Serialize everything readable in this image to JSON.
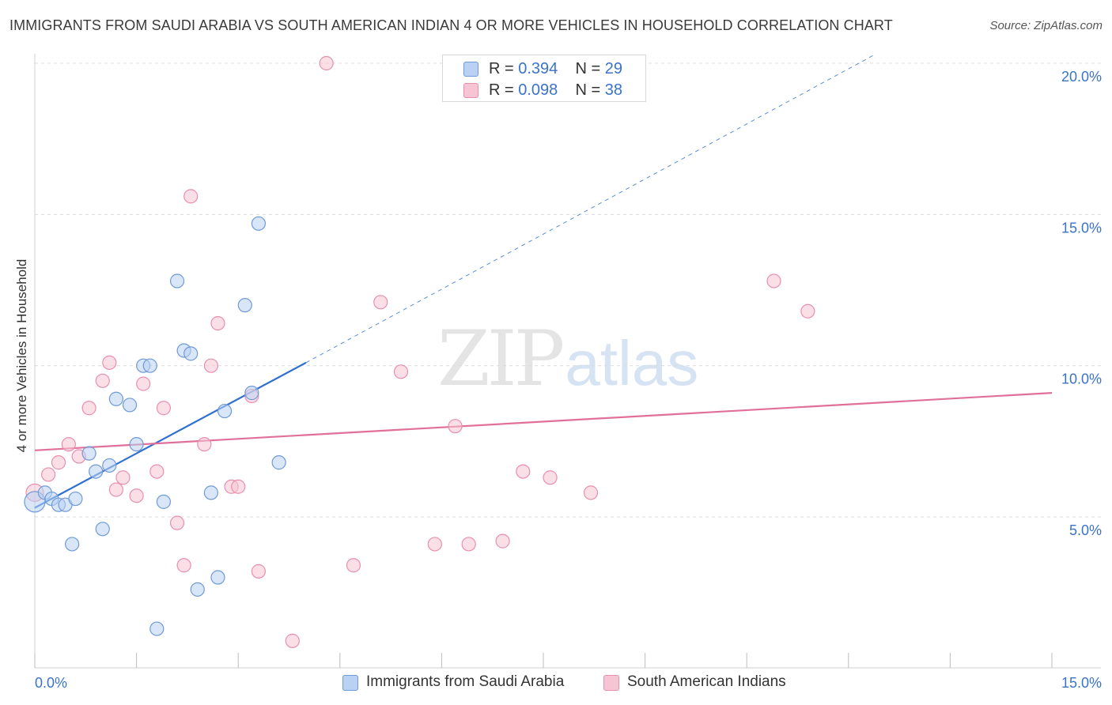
{
  "title": "IMMIGRANTS FROM SAUDI ARABIA VS SOUTH AMERICAN INDIAN 4 OR MORE VEHICLES IN HOUSEHOLD CORRELATION CHART",
  "source": "Source: ZipAtlas.com",
  "watermark": {
    "zip": "ZIP",
    "atlas": "atlas"
  },
  "colors": {
    "blue_fill": "#b9d1f2",
    "blue_stroke": "#6f9ad8",
    "blue_line": "#2f6fd0",
    "pink_fill": "#f7c4d4",
    "pink_stroke": "#e88faf",
    "pink_line": "#e0709a",
    "tick_label": "#3b73c9",
    "grid": "#dcdcdc"
  },
  "legend_top": [
    {
      "series": "blue",
      "r_label": "R = ",
      "r_value": "0.394",
      "n_label": "N = ",
      "n_value": "29"
    },
    {
      "series": "pink",
      "r_label": "R = ",
      "r_value": "0.098",
      "n_label": "N = ",
      "n_value": "38"
    }
  ],
  "chart_data": {
    "type": "scatter",
    "title": "IMMIGRANTS FROM SAUDI ARABIA VS SOUTH AMERICAN INDIAN 4 OR MORE VEHICLES IN HOUSEHOLD CORRELATION CHART",
    "xlabel": "",
    "ylabel": "4 or more Vehicles in Household",
    "xlim": [
      0,
      15
    ],
    "ylim": [
      0,
      20.5
    ],
    "x_tick_labels": [
      "0.0%",
      "15.0%"
    ],
    "y_tick_labels": [
      "5.0%",
      "10.0%",
      "15.0%",
      "20.0%"
    ],
    "y_ticks": [
      5,
      10,
      15,
      20
    ],
    "series": [
      {
        "name": "Immigrants from Saudi Arabia",
        "color": "blue",
        "R": 0.394,
        "N": 29,
        "trend": {
          "x0": 0.0,
          "y0": 5.3,
          "x1": 4.0,
          "y1": 10.1,
          "dashed_to_x": 12.4,
          "dashed_to_y": 20.3
        },
        "points": [
          [
            0.0,
            5.5
          ],
          [
            0.15,
            5.8
          ],
          [
            0.25,
            5.6
          ],
          [
            0.35,
            5.4
          ],
          [
            0.45,
            5.4
          ],
          [
            0.6,
            5.6
          ],
          [
            0.55,
            4.1
          ],
          [
            0.8,
            7.1
          ],
          [
            0.9,
            6.5
          ],
          [
            1.0,
            4.6
          ],
          [
            1.1,
            6.7
          ],
          [
            1.2,
            8.9
          ],
          [
            1.4,
            8.7
          ],
          [
            1.5,
            7.4
          ],
          [
            1.6,
            10.0
          ],
          [
            1.7,
            10.0
          ],
          [
            1.8,
            1.3
          ],
          [
            1.9,
            5.5
          ],
          [
            2.1,
            12.8
          ],
          [
            2.2,
            10.5
          ],
          [
            2.3,
            10.4
          ],
          [
            2.4,
            2.6
          ],
          [
            2.6,
            5.8
          ],
          [
            2.7,
            3.0
          ],
          [
            2.8,
            8.5
          ],
          [
            3.1,
            12.0
          ],
          [
            3.2,
            9.1
          ],
          [
            3.3,
            14.7
          ],
          [
            3.6,
            6.8
          ]
        ]
      },
      {
        "name": "South American Indians",
        "color": "pink",
        "R": 0.098,
        "N": 38,
        "trend": {
          "x0": 0.0,
          "y0": 7.2,
          "x1": 15.0,
          "y1": 9.1
        },
        "points": [
          [
            0.0,
            5.8
          ],
          [
            0.2,
            6.4
          ],
          [
            0.35,
            6.8
          ],
          [
            0.5,
            7.4
          ],
          [
            0.65,
            7.0
          ],
          [
            0.8,
            8.6
          ],
          [
            1.0,
            9.5
          ],
          [
            1.1,
            10.1
          ],
          [
            1.2,
            5.9
          ],
          [
            1.3,
            6.3
          ],
          [
            1.5,
            5.7
          ],
          [
            1.6,
            9.4
          ],
          [
            1.8,
            6.5
          ],
          [
            1.9,
            8.6
          ],
          [
            2.1,
            4.8
          ],
          [
            2.2,
            3.4
          ],
          [
            2.3,
            15.6
          ],
          [
            2.5,
            7.4
          ],
          [
            2.6,
            10.0
          ],
          [
            2.7,
            11.4
          ],
          [
            2.9,
            6.0
          ],
          [
            3.0,
            6.0
          ],
          [
            3.2,
            9.0
          ],
          [
            3.3,
            3.2
          ],
          [
            3.8,
            0.9
          ],
          [
            4.3,
            20.0
          ],
          [
            4.7,
            3.4
          ],
          [
            5.1,
            12.1
          ],
          [
            5.4,
            9.8
          ],
          [
            5.9,
            4.1
          ],
          [
            6.2,
            8.0
          ],
          [
            6.4,
            4.1
          ],
          [
            6.9,
            4.2
          ],
          [
            7.2,
            6.5
          ],
          [
            7.6,
            6.3
          ],
          [
            8.2,
            5.8
          ],
          [
            10.9,
            12.8
          ],
          [
            11.4,
            11.8
          ]
        ]
      }
    ]
  }
}
